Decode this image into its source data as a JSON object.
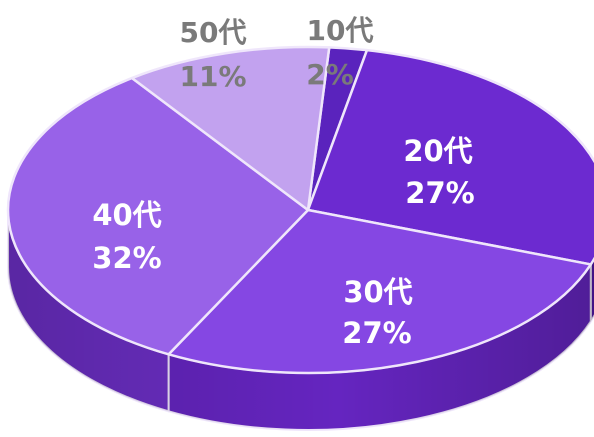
{
  "chart_data": {
    "type": "pie",
    "categories": [
      "10代",
      "20代",
      "30代",
      "40代",
      "50代"
    ],
    "values": [
      2,
      27,
      27,
      32,
      11
    ],
    "value_labels": [
      "2%",
      "27%",
      "27%",
      "32%",
      "11%"
    ],
    "title": "",
    "colors": {
      "top": [
        "#5a23bd",
        "#6c2ad0",
        "#8547e3",
        "#9862e8",
        "#c2a2ef"
      ],
      "side": [
        "#3e138a",
        "#5317a8",
        "#6525c0",
        "#6d2fc7",
        "#9a74d8"
      ],
      "separator": "#efe6fb",
      "outside_label": "#7a7a7a",
      "inside_label": "#ffffff"
    }
  }
}
